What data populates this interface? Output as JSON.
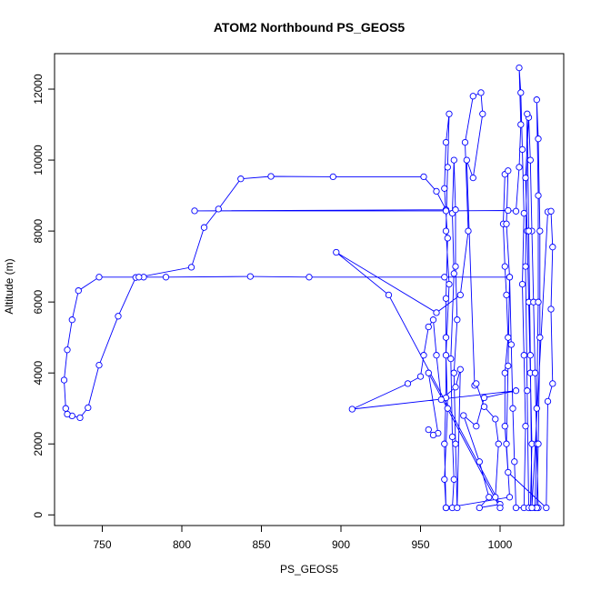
{
  "chart_data": {
    "type": "line",
    "title": "ATOM2 Northbound PS_GEOS5",
    "xlabel": "PS_GEOS5",
    "ylabel": "Altitude (m)",
    "xlim": [
      720,
      1040
    ],
    "ylim": [
      -300,
      13000
    ],
    "xticks": [
      750,
      800,
      850,
      900,
      950,
      1000
    ],
    "yticks": [
      0,
      2000,
      4000,
      6000,
      8000,
      10000,
      12000
    ],
    "color": "#0000ff",
    "marker": "open-circle",
    "grid": false,
    "series": [
      {
        "points": [
          [
            1019,
            200
          ],
          [
            1020,
            2000
          ],
          [
            1019,
            4000
          ],
          [
            1018,
            6000
          ],
          [
            1017,
            8000
          ],
          [
            1016,
            9500
          ],
          [
            1018,
            11200
          ],
          [
            1019,
            10000
          ],
          [
            1020,
            8000
          ],
          [
            1021,
            6000
          ],
          [
            1022,
            4000
          ],
          [
            1023,
            2000
          ],
          [
            1024,
            200
          ],
          [
            1010,
            200
          ],
          [
            1009,
            1500
          ],
          [
            1008,
            3000
          ],
          [
            1007,
            4800
          ],
          [
            1006,
            6700
          ],
          [
            965,
            6700
          ],
          [
            880,
            6700
          ],
          [
            843,
            6720
          ],
          [
            790,
            6700
          ],
          [
            776,
            6700
          ],
          [
            771,
            6690
          ],
          [
            760,
            5600
          ],
          [
            748,
            4220
          ],
          [
            741,
            3020
          ],
          [
            736,
            2740
          ],
          [
            731,
            2790
          ],
          [
            728,
            2840
          ],
          [
            727,
            3000
          ],
          [
            726,
            3800
          ],
          [
            728,
            4650
          ],
          [
            731,
            5500
          ],
          [
            735,
            6320
          ],
          [
            748,
            6700
          ],
          [
            773,
            6700
          ],
          [
            806,
            6980
          ],
          [
            814,
            8100
          ],
          [
            823,
            8620
          ],
          [
            837,
            9470
          ],
          [
            856,
            9540
          ],
          [
            895,
            9530
          ],
          [
            952,
            9530
          ],
          [
            960,
            9120
          ],
          [
            966,
            8600
          ],
          [
            808,
            8570
          ],
          [
            966,
            8570
          ],
          [
            1005,
            8580
          ],
          [
            1010,
            8560
          ],
          [
            1012,
            9800
          ],
          [
            1013,
            11000
          ],
          [
            1012,
            12600
          ],
          [
            1013,
            11900
          ],
          [
            1014,
            10300
          ],
          [
            1015,
            8500
          ],
          [
            1014,
            6500
          ],
          [
            1015,
            4500
          ],
          [
            1016,
            2500
          ],
          [
            1015,
            200
          ],
          [
            1022,
            200
          ],
          [
            1023,
            3000
          ],
          [
            1024,
            6000
          ],
          [
            1024,
            9000
          ],
          [
            1023,
            11700
          ],
          [
            1024,
            10600
          ],
          [
            1025,
            8000
          ],
          [
            1025,
            5000
          ],
          [
            1024,
            2000
          ],
          [
            1023,
            200
          ],
          [
            1018,
            200
          ],
          [
            1017,
            3500
          ],
          [
            1016,
            7000
          ],
          [
            1017,
            11300
          ],
          [
            1018,
            8000
          ],
          [
            1019,
            4500
          ],
          [
            1020,
            200
          ],
          [
            1030,
            8540
          ],
          [
            1032,
            8560
          ],
          [
            1033,
            7550
          ],
          [
            1032,
            5800
          ],
          [
            1033,
            3700
          ],
          [
            1030,
            3200
          ],
          [
            1029,
            200
          ],
          [
            1005,
            1200
          ],
          [
            1003,
            2500
          ],
          [
            1003,
            4000
          ],
          [
            1005,
            5000
          ],
          [
            1004,
            6200
          ],
          [
            1003,
            7000
          ],
          [
            1002,
            8200
          ],
          [
            1003,
            9600
          ],
          [
            1005,
            9700
          ],
          [
            1004,
            8200
          ],
          [
            1006,
            6700
          ],
          [
            1005,
            4200
          ],
          [
            1004,
            2000
          ],
          [
            1006,
            500
          ],
          [
            966,
            200
          ],
          [
            965,
            2000
          ],
          [
            966,
            3300
          ],
          [
            966,
            5000
          ],
          [
            966,
            6100
          ],
          [
            967,
            7800
          ],
          [
            965,
            9200
          ],
          [
            966,
            10500
          ],
          [
            968,
            11300
          ],
          [
            967,
            9800
          ],
          [
            966,
            8000
          ],
          [
            968,
            6500
          ],
          [
            966,
            4500
          ],
          [
            967,
            3000
          ],
          [
            965,
            1000
          ],
          [
            966,
            200
          ],
          [
            970,
            200
          ],
          [
            971,
            1000
          ],
          [
            970,
            2200
          ],
          [
            969,
            4400
          ],
          [
            971,
            6800
          ],
          [
            970,
            8500
          ],
          [
            971,
            10000
          ],
          [
            972,
            8600
          ],
          [
            972,
            7000
          ],
          [
            973,
            5500
          ],
          [
            971,
            4000
          ],
          [
            972,
            2000
          ],
          [
            973,
            200
          ],
          [
            975,
            4100
          ],
          [
            972,
            3600
          ],
          [
            963,
            3250
          ],
          [
            960,
            4500
          ],
          [
            958,
            5500
          ],
          [
            955,
            5300
          ],
          [
            952,
            4500
          ],
          [
            950,
            3900
          ],
          [
            942,
            3700
          ],
          [
            907,
            2980
          ],
          [
            1010,
            3500
          ],
          [
            990,
            3300
          ],
          [
            985,
            2500
          ],
          [
            977,
            2800
          ],
          [
            987,
            1500
          ],
          [
            993,
            500
          ],
          [
            987,
            200
          ],
          [
            1000,
            300
          ],
          [
            930,
            6200
          ],
          [
            897,
            7400
          ],
          [
            960,
            5700
          ],
          [
            975,
            6200
          ],
          [
            980,
            8000
          ],
          [
            978,
            10500
          ],
          [
            983,
            11800
          ],
          [
            988,
            11900
          ],
          [
            989,
            11300
          ],
          [
            983,
            9500
          ],
          [
            979,
            10000
          ],
          [
            984,
            3650
          ],
          [
            985,
            3700
          ],
          [
            990,
            3050
          ],
          [
            997,
            2700
          ],
          [
            999,
            2000
          ],
          [
            997,
            500
          ],
          [
            1000,
            200
          ],
          [
            955,
            4000
          ],
          [
            961,
            2300
          ],
          [
            958,
            2250
          ],
          [
            955,
            2400
          ]
        ]
      }
    ]
  }
}
